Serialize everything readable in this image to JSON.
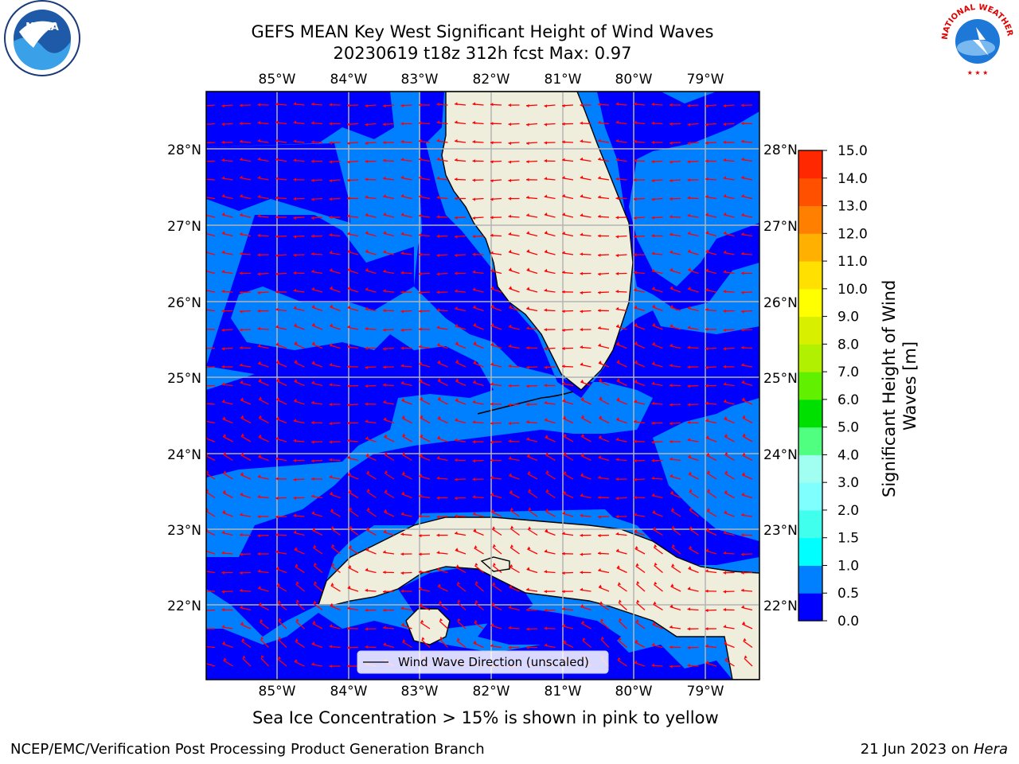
{
  "title": {
    "line1": "GEFS MEAN Key West Significant Height of Wind Waves",
    "line2": "20230619 t18z 312h fcst   Max: 0.97"
  },
  "logos": {
    "left": "NOAA",
    "right": "NATIONAL WEATHER SERVICE"
  },
  "map": {
    "lon_labels": [
      "85°W",
      "84°W",
      "83°W",
      "82°W",
      "81°W",
      "80°W",
      "79°W"
    ],
    "lat_labels": [
      "28°N",
      "27°N",
      "26°N",
      "25°N",
      "24°N",
      "23°N",
      "22°N"
    ],
    "legend_label": "Wind Wave Direction (unscaled)",
    "colors": {
      "land": "#efeedc",
      "sea_low": "#0000ff",
      "sea_mid": "#0080ff",
      "grid": "#b4b4b4",
      "arrow": "#ff0000"
    }
  },
  "colorbar": {
    "label": "Significant Height of Wind Waves [m]",
    "ticks": [
      "0.0",
      "0.5",
      "1.0",
      "1.5",
      "2.0",
      "3.0",
      "4.0",
      "5.0",
      "6.0",
      "7.0",
      "8.0",
      "9.0",
      "10.0",
      "11.0",
      "12.0",
      "13.0",
      "14.0",
      "15.0"
    ],
    "colors": [
      "#0000ff",
      "#0080ff",
      "#00ffff",
      "#40ffec",
      "#80ffff",
      "#a0fff0",
      "#50ff80",
      "#00e000",
      "#60f000",
      "#b0f000",
      "#d8f000",
      "#ffff00",
      "#ffe000",
      "#ffb000",
      "#ff8000",
      "#ff5000",
      "#ff2800"
    ]
  },
  "note": "Sea Ice Concentration > 15% is shown in pink to yellow",
  "footer": {
    "left": "NCEP/EMC/Verification Post Processing Product Generation Branch",
    "date": "21 Jun 2023 on ",
    "machine": "Hera"
  }
}
